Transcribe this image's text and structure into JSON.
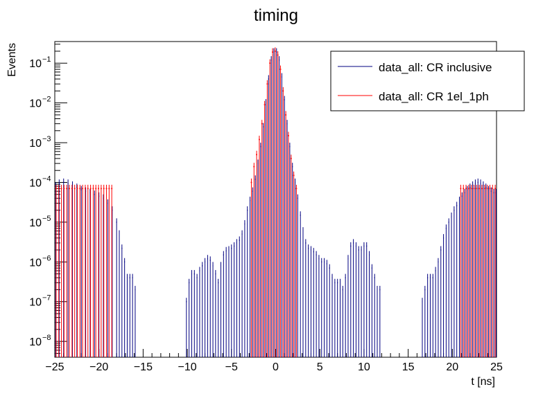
{
  "chart_data": {
    "type": "histogram-errorbar",
    "title": "timing",
    "xlabel": "t [ns]",
    "ylabel": "Events",
    "xlim": [
      -25,
      25
    ],
    "ylim": [
      4e-09,
      0.35
    ],
    "yscale": "log",
    "grid": false,
    "legend_position": "top-right",
    "x_ticks": [
      -25,
      -20,
      -15,
      -10,
      -5,
      0,
      5,
      10,
      15,
      20,
      25
    ],
    "x_tick_labels": [
      "−25",
      "−20",
      "−15",
      "−10",
      "−5",
      "0",
      "5",
      "10",
      "15",
      "20",
      "25"
    ],
    "y_ticks": [
      1e-08,
      1e-07,
      1e-06,
      1e-05,
      0.0001,
      0.001,
      0.01,
      0.1
    ],
    "y_tick_mantissa": "10",
    "y_tick_exponents": [
      "−8",
      "−7",
      "−6",
      "−5",
      "−4",
      "−3",
      "−2",
      "−1"
    ],
    "series": [
      {
        "name": "data_all: CR inclusive",
        "color": "#000080",
        "points": [
          [
            -24.9,
            8e-05
          ],
          [
            -24.5,
            9.5e-05
          ],
          [
            -24.0,
            0.0001
          ],
          [
            -23.5,
            9.5e-05
          ],
          [
            -23.0,
            8.5e-05
          ],
          [
            -22.5,
            7.5e-05
          ],
          [
            -22.0,
            6.5e-05
          ],
          [
            -21.5,
            6e-05
          ],
          [
            -21.0,
            5.5e-05
          ],
          [
            -20.5,
            5e-05
          ],
          [
            -20.0,
            4.5e-05
          ],
          [
            -19.5,
            4e-05
          ],
          [
            -19.0,
            3e-05
          ],
          [
            -18.5,
            2e-05
          ],
          [
            -18.0,
            1e-05
          ],
          [
            -17.7,
            5e-06
          ],
          [
            -17.4,
            2.2e-06
          ],
          [
            -17.1,
            1e-06
          ],
          [
            -16.8,
            4e-07
          ],
          [
            -16.5,
            4e-07
          ],
          [
            -16.2,
            4e-07
          ],
          [
            -15.9,
            2e-07
          ],
          [
            -10.1,
            1e-07
          ],
          [
            -9.8,
            3e-07
          ],
          [
            -9.5,
            5e-07
          ],
          [
            -9.2,
            5e-07
          ],
          [
            -8.9,
            4e-07
          ],
          [
            -8.6,
            6e-07
          ],
          [
            -8.3,
            8e-07
          ],
          [
            -8.0,
            1e-06
          ],
          [
            -7.7,
            1.2e-06
          ],
          [
            -7.4,
            1.1e-06
          ],
          [
            -7.1,
            8e-07
          ],
          [
            -6.8,
            5e-07
          ],
          [
            -6.5,
            3e-07
          ],
          [
            -6.2,
            8e-07
          ],
          [
            -5.9,
            1.5e-06
          ],
          [
            -5.6,
            1.9e-06
          ],
          [
            -5.3,
            2e-06
          ],
          [
            -5.0,
            2.2e-06
          ],
          [
            -4.7,
            2.5e-06
          ],
          [
            -4.4,
            3e-06
          ],
          [
            -4.1,
            3.5e-06
          ],
          [
            -3.8,
            5e-06
          ],
          [
            -3.5,
            9e-06
          ],
          [
            -3.2,
            2e-05
          ],
          [
            -2.9,
            3.5e-05
          ],
          [
            -2.6,
            6e-05
          ],
          [
            -2.3,
            0.00012
          ],
          [
            -2.0,
            0.0003
          ],
          [
            -1.7,
            0.0008
          ],
          [
            -1.4,
            0.0025
          ],
          [
            -1.1,
            0.01
          ],
          [
            -0.8,
            0.04
          ],
          [
            -0.5,
            0.12
          ],
          [
            -0.2,
            0.19
          ],
          [
            0.1,
            0.19
          ],
          [
            0.4,
            0.12
          ],
          [
            0.7,
            0.045
          ],
          [
            1.0,
            0.012
          ],
          [
            1.3,
            0.003
          ],
          [
            1.6,
            0.0008
          ],
          [
            1.9,
            0.00025
          ],
          [
            2.2,
            0.0001
          ],
          [
            2.5,
            4e-05
          ],
          [
            2.8,
            1.5e-05
          ],
          [
            3.1,
            6e-06
          ],
          [
            3.4,
            3e-06
          ],
          [
            3.7,
            2.2e-06
          ],
          [
            4.0,
            2e-06
          ],
          [
            4.3,
            1.8e-06
          ],
          [
            4.6,
            1.5e-06
          ],
          [
            4.9,
            1.2e-06
          ],
          [
            5.2,
            1e-06
          ],
          [
            5.5,
            1e-06
          ],
          [
            5.8,
            9e-07
          ],
          [
            6.1,
            7e-07
          ],
          [
            6.4,
            4e-07
          ],
          [
            6.7,
            3e-07
          ],
          [
            7.0,
            3e-07
          ],
          [
            7.3,
            3e-07
          ],
          [
            7.6,
            2e-07
          ],
          [
            7.9,
            4e-07
          ],
          [
            8.2,
            1.2e-06
          ],
          [
            8.5,
            2.5e-06
          ],
          [
            8.8,
            3e-06
          ],
          [
            9.1,
            2.5e-06
          ],
          [
            9.4,
            2e-06
          ],
          [
            9.7,
            2e-06
          ],
          [
            10.0,
            2.5e-06
          ],
          [
            10.3,
            2.5e-06
          ],
          [
            10.6,
            1.5e-06
          ],
          [
            10.9,
            7e-07
          ],
          [
            11.2,
            4e-07
          ],
          [
            11.5,
            2e-07
          ],
          [
            11.8,
            2e-07
          ],
          [
            16.6,
            1e-07
          ],
          [
            16.9,
            2e-07
          ],
          [
            17.2,
            4e-07
          ],
          [
            17.5,
            4e-07
          ],
          [
            17.8,
            4e-07
          ],
          [
            18.1,
            6e-07
          ],
          [
            18.4,
            1e-06
          ],
          [
            18.7,
            2e-06
          ],
          [
            19.0,
            4e-06
          ],
          [
            19.3,
            7e-06
          ],
          [
            19.6,
            1e-05
          ],
          [
            19.9,
            1.4e-05
          ],
          [
            20.2,
            2e-05
          ],
          [
            20.5,
            2.6e-05
          ],
          [
            20.8,
            3.5e-05
          ],
          [
            21.1,
            4.5e-05
          ],
          [
            21.4,
            5.5e-05
          ],
          [
            21.7,
            6.5e-05
          ],
          [
            22.0,
            7.5e-05
          ],
          [
            22.3,
            8.5e-05
          ],
          [
            22.6,
            9.5e-05
          ],
          [
            22.9,
            0.0001
          ],
          [
            23.2,
            9.5e-05
          ],
          [
            23.5,
            8.5e-05
          ],
          [
            23.8,
            7.5e-05
          ],
          [
            24.1,
            6.5e-05
          ],
          [
            24.4,
            6e-05
          ],
          [
            24.7,
            5.5e-05
          ],
          [
            24.95,
            5.5e-05
          ]
        ]
      },
      {
        "name": "data_all: CR 1el_1ph",
        "color": "#ff0000",
        "points": [
          [
            -24.85,
            7e-05
          ],
          [
            -24.55,
            7e-05
          ],
          [
            -24.25,
            7e-05
          ],
          [
            -23.95,
            7e-05
          ],
          [
            -23.65,
            7e-05
          ],
          [
            -23.35,
            7e-05
          ],
          [
            -23.05,
            7e-05
          ],
          [
            -22.75,
            7e-05
          ],
          [
            -22.45,
            7e-05
          ],
          [
            -22.15,
            7e-05
          ],
          [
            -21.85,
            7e-05
          ],
          [
            -21.55,
            7e-05
          ],
          [
            -21.25,
            7e-05
          ],
          [
            -20.95,
            7e-05
          ],
          [
            -20.65,
            7e-05
          ],
          [
            -20.35,
            7e-05
          ],
          [
            -20.05,
            7e-05
          ],
          [
            -19.75,
            7e-05
          ],
          [
            -19.45,
            7e-05
          ],
          [
            -19.15,
            7e-05
          ],
          [
            -18.85,
            7e-05
          ],
          [
            -18.55,
            7e-05
          ],
          [
            -2.75,
            0.0001
          ],
          [
            -2.45,
            0.00025
          ],
          [
            -2.15,
            0.0005
          ],
          [
            -1.85,
            0.0012
          ],
          [
            -1.55,
            0.003
          ],
          [
            -1.25,
            0.009
          ],
          [
            -0.95,
            0.03
          ],
          [
            -0.65,
            0.1
          ],
          [
            -0.35,
            0.19
          ],
          [
            -0.05,
            0.2
          ],
          [
            0.25,
            0.16
          ],
          [
            0.55,
            0.07
          ],
          [
            0.85,
            0.02
          ],
          [
            1.15,
            0.005
          ],
          [
            1.45,
            0.0015
          ],
          [
            1.75,
            0.0004
          ],
          [
            2.05,
            0.00015
          ],
          [
            2.35,
            7e-05
          ],
          [
            20.95,
            7e-05
          ],
          [
            21.25,
            7e-05
          ],
          [
            21.55,
            7e-05
          ],
          [
            21.85,
            7e-05
          ],
          [
            22.15,
            7e-05
          ],
          [
            22.45,
            7e-05
          ],
          [
            22.75,
            7e-05
          ],
          [
            23.05,
            7e-05
          ],
          [
            23.35,
            7e-05
          ],
          [
            23.65,
            7e-05
          ],
          [
            23.95,
            7e-05
          ],
          [
            24.25,
            7e-05
          ],
          [
            24.55,
            7e-05
          ],
          [
            24.85,
            7e-05
          ]
        ]
      }
    ]
  }
}
